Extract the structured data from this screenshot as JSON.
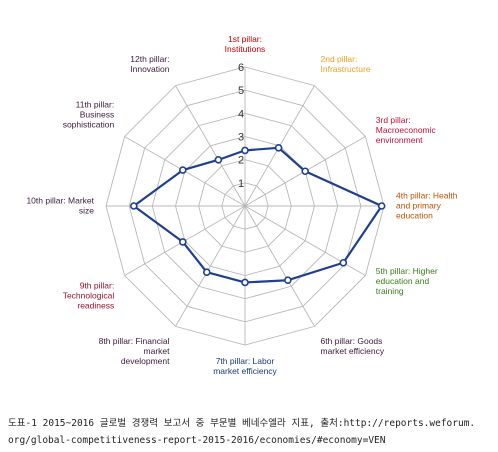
{
  "chart_data": {
    "type": "radar",
    "axes": [
      {
        "label": [
          "1st pillar:",
          "Institutions"
        ],
        "color": "#c00000"
      },
      {
        "label": [
          "2nd pillar:",
          "Infrastructure"
        ],
        "color": "#f0a020"
      },
      {
        "label": [
          "3rd pillar:",
          "Macroeconomic",
          "environment"
        ],
        "color": "#c0103a"
      },
      {
        "label": [
          "4th pillar: Health",
          "and primary",
          "education"
        ],
        "color": "#c05000"
      },
      {
        "label": [
          "5th pillar: Higher",
          "education and",
          "training"
        ],
        "color": "#3a7a1a"
      },
      {
        "label": [
          "6th pillar: Goods",
          "market efficiency"
        ],
        "color": "#3a1a3a"
      },
      {
        "label": [
          "7th pillar: Labor",
          "market efficiency"
        ],
        "color": "#1a3a6a"
      },
      {
        "label": [
          "8th pillar: Financial",
          "market",
          "development"
        ],
        "color": "#3a1a3a"
      },
      {
        "label": [
          "9th pillar:",
          "Technological",
          "readiness"
        ],
        "color": "#a01030"
      },
      {
        "label": [
          "10th pillar: Market",
          "size"
        ],
        "color": "#3a1a3a"
      },
      {
        "label": [
          "11th pillar:",
          "Business",
          "sophistication"
        ],
        "color": "#3a1a3a"
      },
      {
        "label": [
          "12th pillar:",
          "Innovation"
        ],
        "color": "#3a1a3a"
      }
    ],
    "ticks": [
      "1",
      "2",
      "3",
      "4",
      "5",
      "6"
    ],
    "range": [
      0,
      6
    ],
    "series": [
      {
        "values": [
          2.4,
          2.9,
          3.0,
          5.9,
          4.9,
          3.7,
          3.3,
          3.3,
          3.1,
          4.8,
          3.1,
          2.3
        ],
        "color": "#1f3f8f"
      }
    ],
    "grid": true
  },
  "caption": {
    "line1": "도표-1 2015~2016 글로벌 경쟁력 보고서 중 부문별 베네수엘라 지표, 출처:http://reports.weforum.",
    "line2": "org/global-competitiveness-report-2015-2016/economies/#economy=VEN"
  }
}
